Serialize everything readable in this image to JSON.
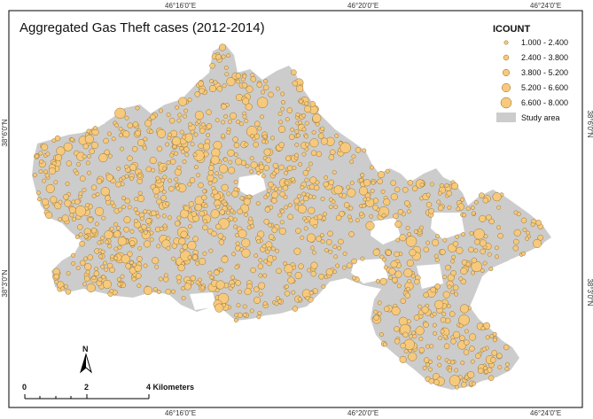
{
  "map": {
    "title": "Aggregated Gas Theft cases (2012-2014)",
    "ticks": {
      "top": [
        "46°16'0\"E",
        "46°20'0\"E",
        "46°24'0\"E"
      ],
      "bottom": [
        "46°16'0\"E",
        "46°20'0\"E",
        "46°24'0\"E"
      ],
      "left": [
        "38°6'0\"N",
        "38°3'0\"N"
      ],
      "right": [
        "38°6'0\"N",
        "38°3'0\"N"
      ]
    },
    "legend": {
      "title": "ICOUNT",
      "classes": [
        {
          "label": "1.000 - 2.400",
          "size_class": 1
        },
        {
          "label": "2.400 - 3.800",
          "size_class": 2
        },
        {
          "label": "3.800 - 5.200",
          "size_class": 3
        },
        {
          "label": "5.200 - 6.600",
          "size_class": 4
        },
        {
          "label": "6.600 - 8.000",
          "size_class": 5
        }
      ],
      "study_area_label": "Study area"
    },
    "north_arrow_label": "N",
    "scale_bar": {
      "labels": [
        "0",
        "2",
        "4 Kilometers"
      ]
    },
    "colors": {
      "point_fill": "#f7c97c",
      "point_stroke": "#8a6a2a",
      "study_area": "#cccccc",
      "frame": "#000000"
    }
  }
}
